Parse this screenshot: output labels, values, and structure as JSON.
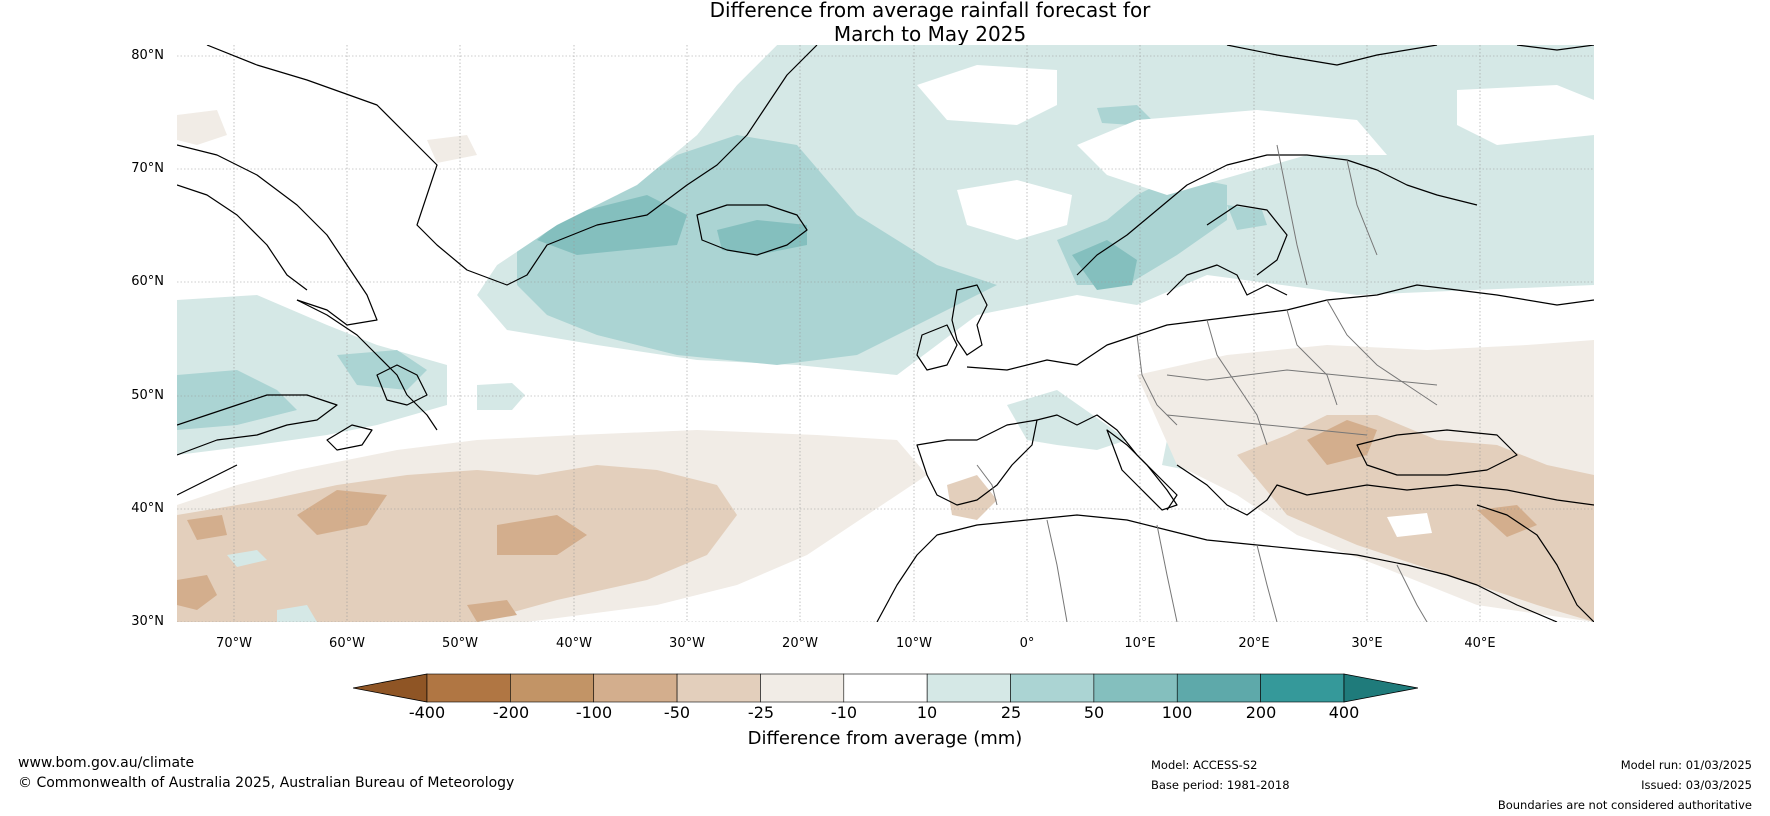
{
  "title": {
    "line1": "Difference from average rainfall forecast for",
    "line2": "March to May 2025"
  },
  "map": {
    "lat_labels": [
      "80°N",
      "70°N",
      "60°N",
      "50°N",
      "40°N",
      "30°N"
    ],
    "lon_labels": [
      "70°W",
      "60°W",
      "50°W",
      "40°W",
      "30°W",
      "20°W",
      "10°W",
      "0°",
      "10°E",
      "20°E",
      "30°E",
      "40°E"
    ],
    "extent": {
      "lon_min": -75,
      "lon_max": 50,
      "lat_min": 30,
      "lat_max": 81
    }
  },
  "colorbar": {
    "title": "Difference from average (mm)",
    "ticks": [
      "-400",
      "-200",
      "-100",
      "-50",
      "-25",
      "-10",
      "10",
      "25",
      "50",
      "100",
      "200",
      "400"
    ],
    "colors": {
      "under": "#8f5525",
      "bins": [
        "#b07643",
        "#c29466",
        "#d3ae8d",
        "#e3cfbc",
        "#f1ece6",
        "#ffffff",
        "#d5e8e6",
        "#abd4d3",
        "#84bfbe",
        "#5ea9aa",
        "#35999a"
      ],
      "over": "#1f7b7b"
    }
  },
  "footer": {
    "website": "www.bom.gov.au/climate",
    "copyright": "© Commonwealth of Australia 2025, Australian Bureau of Meteorology",
    "model": "Model: ACCESS-S2",
    "base_period": "Base period: 1981-2018",
    "model_run": "Model run: 01/03/2025",
    "issued": "Issued: 03/03/2025",
    "disclaimer": "Boundaries are not considered authoritative"
  }
}
